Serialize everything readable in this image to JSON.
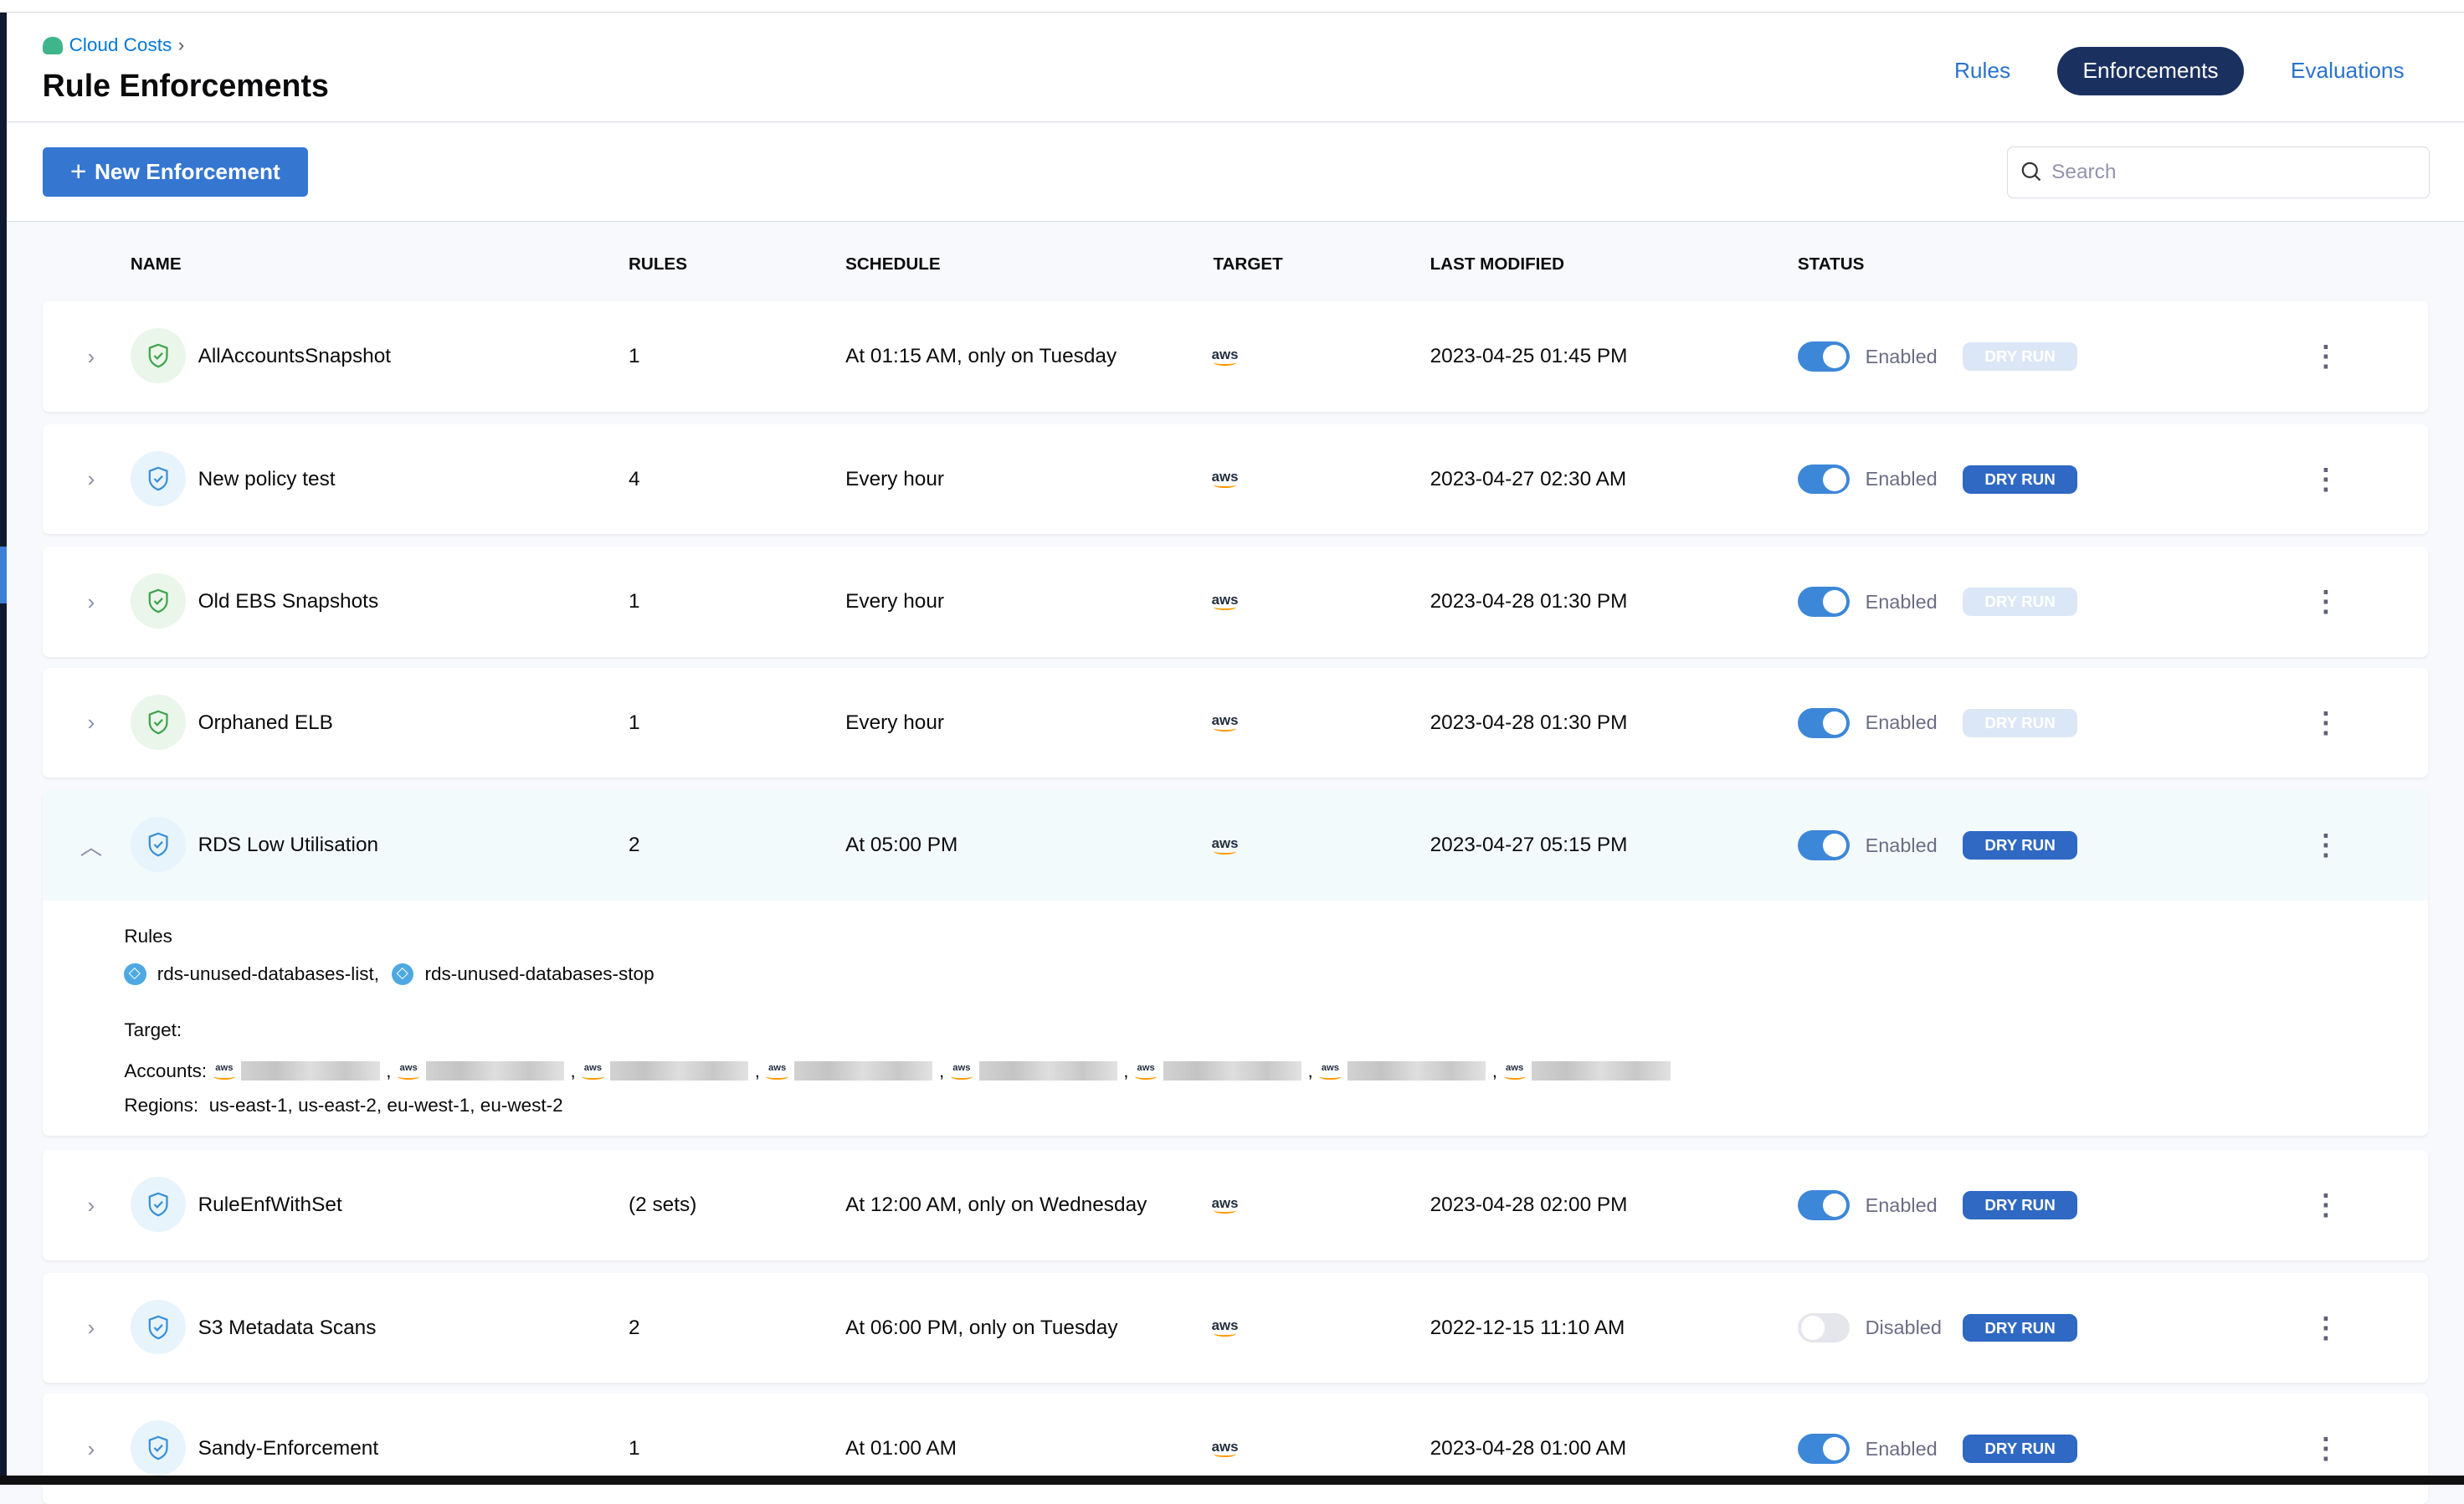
{
  "breadcrumb": {
    "label": "Cloud Costs",
    "icon": "cloud-costs-icon"
  },
  "page_title": "Rule Enforcements",
  "tabs": [
    {
      "label": "Rules",
      "active": false
    },
    {
      "label": "Enforcements",
      "active": true
    },
    {
      "label": "Evaluations",
      "active": false
    }
  ],
  "toolbar": {
    "new_label": "New Enforcement",
    "search_placeholder": "Search"
  },
  "columns": {
    "name": "NAME",
    "rules": "RULES",
    "schedule": "SCHEDULE",
    "target": "TARGET",
    "modified": "LAST MODIFIED",
    "status": "STATUS"
  },
  "rows": [
    {
      "name": "AllAccountsSnapshot",
      "rules": "1",
      "schedule": "At 01:15 AM, only on Tuesday",
      "target": "aws",
      "modified": "2023-04-25 01:45 PM",
      "status": "Enabled",
      "enabled": true,
      "dry_run": "DRY RUN",
      "dry_run_active": false,
      "icon_color": "green"
    },
    {
      "name": "New policy test",
      "rules": "4",
      "schedule": "Every hour",
      "target": "aws",
      "modified": "2023-04-27 02:30 AM",
      "status": "Enabled",
      "enabled": true,
      "dry_run": "DRY RUN",
      "dry_run_active": true,
      "icon_color": "blue"
    },
    {
      "name": "Old EBS Snapshots",
      "rules": "1",
      "schedule": "Every hour",
      "target": "aws",
      "modified": "2023-04-28 01:30 PM",
      "status": "Enabled",
      "enabled": true,
      "dry_run": "DRY RUN",
      "dry_run_active": false,
      "icon_color": "green"
    },
    {
      "name": "Orphaned ELB",
      "rules": "1",
      "schedule": "Every hour",
      "target": "aws",
      "modified": "2023-04-28 01:30 PM",
      "status": "Enabled",
      "enabled": true,
      "dry_run": "DRY RUN",
      "dry_run_active": false,
      "icon_color": "green"
    },
    {
      "name": "RDS Low Utilisation",
      "rules": "2",
      "schedule": "At 05:00 PM",
      "target": "aws",
      "modified": "2023-04-27 05:15 PM",
      "status": "Enabled",
      "enabled": true,
      "dry_run": "DRY RUN",
      "dry_run_active": true,
      "icon_color": "blue",
      "expanded": true
    },
    {
      "name": "RuleEnfWithSet",
      "rules": "(2 sets)",
      "schedule": "At 12:00 AM, only on Wednesday",
      "target": "aws",
      "modified": "2023-04-28 02:00 PM",
      "status": "Enabled",
      "enabled": true,
      "dry_run": "DRY RUN",
      "dry_run_active": true,
      "icon_color": "blue"
    },
    {
      "name": "S3 Metadata Scans",
      "rules": "2",
      "schedule": "At 06:00 PM, only on Tuesday",
      "target": "aws",
      "modified": "2022-12-15 11:10 AM",
      "status": "Disabled",
      "enabled": false,
      "dry_run": "DRY RUN",
      "dry_run_active": true,
      "icon_color": "blue"
    },
    {
      "name": "Sandy-Enforcement",
      "rules": "1",
      "schedule": "At 01:00 AM",
      "target": "aws",
      "modified": "2023-04-28 01:00 AM",
      "status": "Enabled",
      "enabled": true,
      "dry_run": "DRY RUN",
      "dry_run_active": true,
      "icon_color": "blue"
    }
  ],
  "detail": {
    "rules_label": "Rules",
    "rules": [
      "rds-unused-databases-list,",
      "rds-unused-databases-stop"
    ],
    "target_label": "Target:",
    "accounts_label": "Accounts:",
    "account_count": 8,
    "regions_label": "Regions:",
    "regions": "us-east-1,  us-east-2,  eu-west-1,  eu-west-2"
  },
  "colors": {
    "accent": "#3576d1",
    "active_tab": "#1a3160",
    "dry_run": "#2f69c4",
    "toggle_on": "#3d87d8"
  }
}
